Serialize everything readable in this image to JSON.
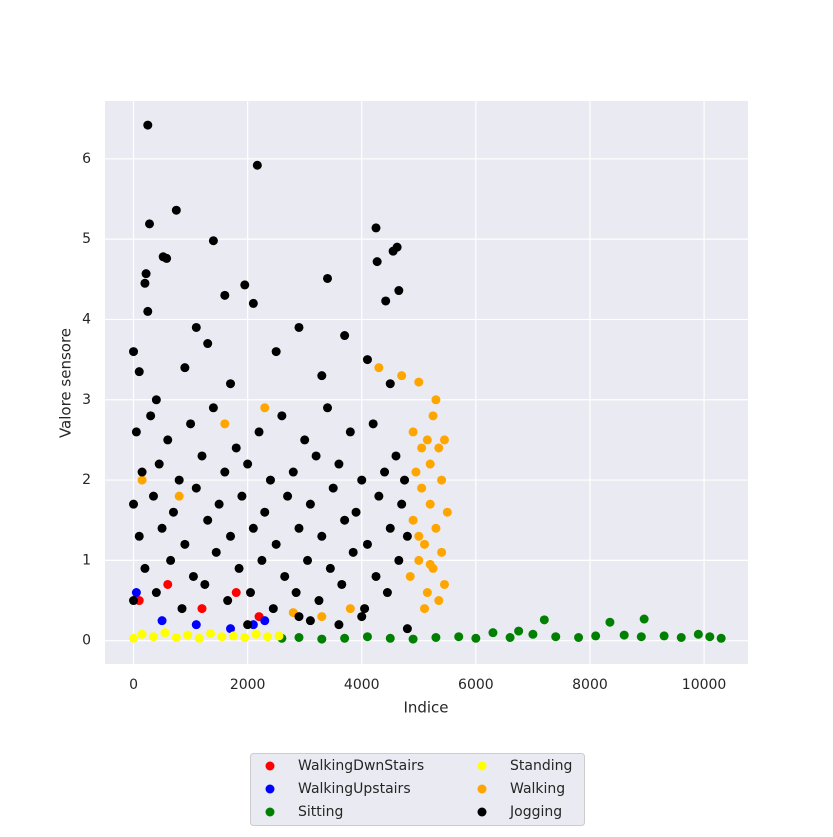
{
  "chart_data": {
    "type": "scatter",
    "x_label": "Indice",
    "y_label": "Valore sensore",
    "xlim": [
      -500,
      10770
    ],
    "ylim": [
      -0.29,
      6.72
    ],
    "xticks": [
      0,
      2000,
      4000,
      6000,
      8000,
      10000
    ],
    "yticks": [
      0,
      1,
      2,
      3,
      4,
      5,
      6
    ],
    "grid": true,
    "legend": "lower center",
    "series": [
      {
        "name": "WalkingDwnStairs",
        "color": "red",
        "x": [
          100,
          600,
          1200,
          1800,
          2200
        ],
        "values": [
          0.5,
          0.7,
          0.4,
          0.6,
          0.3
        ]
      },
      {
        "name": "WalkingUpstairs",
        "color": "blue",
        "x": [
          50,
          500,
          1100,
          1700,
          2100,
          2300
        ],
        "values": [
          0.6,
          0.25,
          0.2,
          0.15,
          0.2,
          0.25
        ]
      },
      {
        "name": "Sitting",
        "color": "green",
        "x": [
          2600,
          2900,
          3300,
          3700,
          4100,
          4500,
          4900,
          5300,
          5700,
          6000,
          6300,
          6600,
          6750,
          7000,
          7200,
          7400,
          7800,
          8100,
          8350,
          8600,
          8900,
          8950,
          9300,
          9600,
          9900,
          10100,
          10300
        ],
        "values": [
          0.03,
          0.04,
          0.02,
          0.03,
          0.05,
          0.03,
          0.02,
          0.04,
          0.05,
          0.03,
          0.1,
          0.04,
          0.12,
          0.08,
          0.26,
          0.05,
          0.04,
          0.06,
          0.23,
          0.07,
          0.05,
          0.27,
          0.06,
          0.04,
          0.08,
          0.05,
          0.03
        ]
      },
      {
        "name": "Standing",
        "color": "yellow",
        "x": [
          0,
          150,
          350,
          550,
          750,
          950,
          1150,
          1350,
          1550,
          1750,
          1950,
          2150,
          2350,
          2550
        ],
        "values": [
          0.03,
          0.08,
          0.05,
          0.1,
          0.04,
          0.07,
          0.03,
          0.09,
          0.05,
          0.06,
          0.04,
          0.08,
          0.05,
          0.06
        ]
      },
      {
        "name": "Walking",
        "color": "orange",
        "x": [
          150,
          800,
          1600,
          2300,
          2800,
          3300,
          3800,
          4300,
          4700,
          4850,
          4900,
          4950,
          5000,
          5000,
          5050,
          5100,
          5150,
          5200,
          5200,
          5250,
          5250,
          5300,
          5350,
          5400,
          5400,
          5450,
          5050,
          5150,
          5300,
          5500,
          4900,
          5100,
          5350,
          5000,
          5200,
          5450
        ],
        "values": [
          2.0,
          1.8,
          2.7,
          2.9,
          0.35,
          0.3,
          0.4,
          3.4,
          3.3,
          0.8,
          1.5,
          2.1,
          3.22,
          1.0,
          2.4,
          1.2,
          0.6,
          2.2,
          1.7,
          0.9,
          2.8,
          1.4,
          0.5,
          2.0,
          1.1,
          0.7,
          1.9,
          2.5,
          3.0,
          1.6,
          2.6,
          0.4,
          2.4,
          1.3,
          0.95,
          2.5
        ]
      },
      {
        "name": "Jogging",
        "color": "black",
        "x": [
          250,
          2170,
          280,
          750,
          1400,
          4250,
          4620,
          4550,
          4270,
          4650,
          4420,
          3400,
          1950,
          520,
          580,
          200,
          220,
          250,
          0,
          100,
          400,
          900,
          1300,
          1700,
          2100,
          2500,
          2900,
          3300,
          3700,
          4100,
          4500,
          50,
          300,
          600,
          1000,
          1400,
          1800,
          2200,
          2600,
          3000,
          3400,
          3800,
          4200,
          4600,
          150,
          450,
          800,
          1200,
          1600,
          2000,
          2400,
          2800,
          3200,
          3600,
          4000,
          4400,
          4750,
          0,
          350,
          700,
          1100,
          1500,
          1900,
          2300,
          2700,
          3100,
          3500,
          3900,
          4300,
          4700,
          100,
          500,
          900,
          1300,
          1700,
          2100,
          2500,
          2900,
          3300,
          3700,
          4100,
          4500,
          4800,
          200,
          650,
          1050,
          1450,
          1850,
          2250,
          2650,
          3050,
          3450,
          3850,
          4250,
          4650,
          0,
          400,
          850,
          1250,
          1650,
          2050,
          2450,
          2850,
          3250,
          3650,
          4050,
          4450,
          4800,
          2000,
          2900,
          3100,
          3600,
          4000,
          1100,
          1600
        ],
        "values": [
          6.42,
          5.92,
          5.19,
          5.36,
          4.98,
          5.14,
          4.9,
          4.85,
          4.72,
          4.36,
          4.23,
          4.51,
          4.43,
          4.78,
          4.76,
          4.45,
          4.57,
          4.1,
          3.6,
          3.35,
          3.0,
          3.4,
          3.7,
          3.2,
          4.2,
          3.6,
          3.9,
          3.3,
          3.8,
          3.5,
          3.2,
          2.6,
          2.8,
          2.5,
          2.7,
          2.9,
          2.4,
          2.6,
          2.8,
          2.5,
          2.9,
          2.6,
          2.7,
          2.3,
          2.1,
          2.2,
          2.0,
          2.3,
          2.1,
          2.2,
          2.0,
          2.1,
          2.3,
          2.2,
          2.0,
          2.1,
          2.0,
          1.7,
          1.8,
          1.6,
          1.9,
          1.7,
          1.8,
          1.6,
          1.8,
          1.7,
          1.9,
          1.6,
          1.8,
          1.7,
          1.3,
          1.4,
          1.2,
          1.5,
          1.3,
          1.4,
          1.2,
          1.4,
          1.3,
          1.5,
          1.2,
          1.4,
          1.3,
          0.9,
          1.0,
          0.8,
          1.1,
          0.9,
          1.0,
          0.8,
          1.0,
          0.9,
          1.1,
          0.8,
          1.0,
          0.5,
          0.6,
          0.4,
          0.7,
          0.5,
          0.6,
          0.4,
          0.6,
          0.5,
          0.7,
          0.4,
          0.6,
          0.15,
          0.2,
          0.3,
          0.25,
          0.2,
          0.3,
          3.9,
          4.3
        ]
      }
    ]
  }
}
